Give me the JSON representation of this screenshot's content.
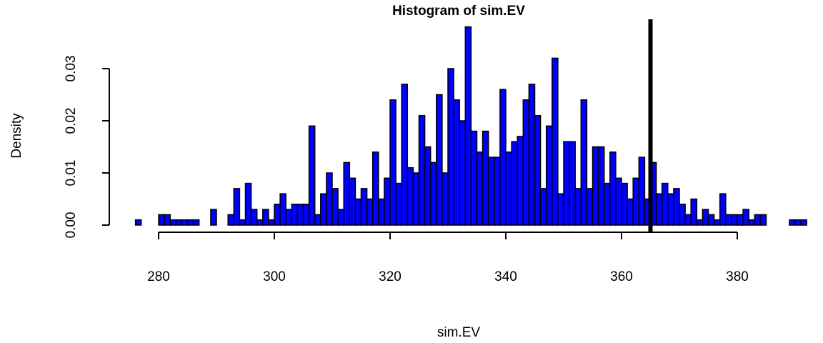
{
  "chart_data": {
    "type": "bar",
    "title": "Histogram of sim.EV",
    "xlabel": "sim.EV",
    "ylabel": "Density",
    "bin_start": 276,
    "bin_width": 1,
    "values": [
      0.001,
      0,
      0,
      0,
      0.002,
      0.002,
      0.001,
      0.001,
      0.001,
      0.001,
      0.001,
      0,
      0,
      0.003,
      0,
      0,
      0.002,
      0.007,
      0.001,
      0.008,
      0.003,
      0.001,
      0.003,
      0.001,
      0.004,
      0.006,
      0.003,
      0.004,
      0.004,
      0.004,
      0.019,
      0.002,
      0.006,
      0.01,
      0.007,
      0.003,
      0.012,
      0.009,
      0.005,
      0.007,
      0.005,
      0.014,
      0.005,
      0.009,
      0.024,
      0.008,
      0.027,
      0.011,
      0.01,
      0.021,
      0.015,
      0.012,
      0.025,
      0.01,
      0.03,
      0.024,
      0.02,
      0.038,
      0.018,
      0.014,
      0.018,
      0.013,
      0.013,
      0.026,
      0.014,
      0.016,
      0.017,
      0.024,
      0.027,
      0.021,
      0.007,
      0.019,
      0.032,
      0.006,
      0.016,
      0.016,
      0.007,
      0.024,
      0.007,
      0.015,
      0.015,
      0.008,
      0.014,
      0.009,
      0.008,
      0.005,
      0.009,
      0.013,
      0.005,
      0.012,
      0.006,
      0.008,
      0.006,
      0.007,
      0.004,
      0.002,
      0.005,
      0.001,
      0.003,
      0.002,
      0.001,
      0.006,
      0.002,
      0.002,
      0.002,
      0.003,
      0.001,
      0.002,
      0.002,
      0,
      0,
      0,
      0,
      0.001,
      0.001,
      0.001
    ],
    "xlim": [
      276,
      388
    ],
    "ylim": [
      0,
      0.038
    ],
    "x_ticks": [
      280,
      300,
      320,
      340,
      360,
      380
    ],
    "y_ticks": [
      0.0,
      0.01,
      0.02,
      0.03
    ],
    "x_tick_labels": [
      "280",
      "300",
      "320",
      "340",
      "360",
      "380"
    ],
    "y_tick_labels": [
      "0.00",
      "0.01",
      "0.02",
      "0.03"
    ],
    "reference_line_x": 365,
    "bar_color": "#0000FF",
    "bar_border_color": "#000000",
    "reference_line_color": "#000000",
    "grid": false,
    "legend": "none"
  }
}
